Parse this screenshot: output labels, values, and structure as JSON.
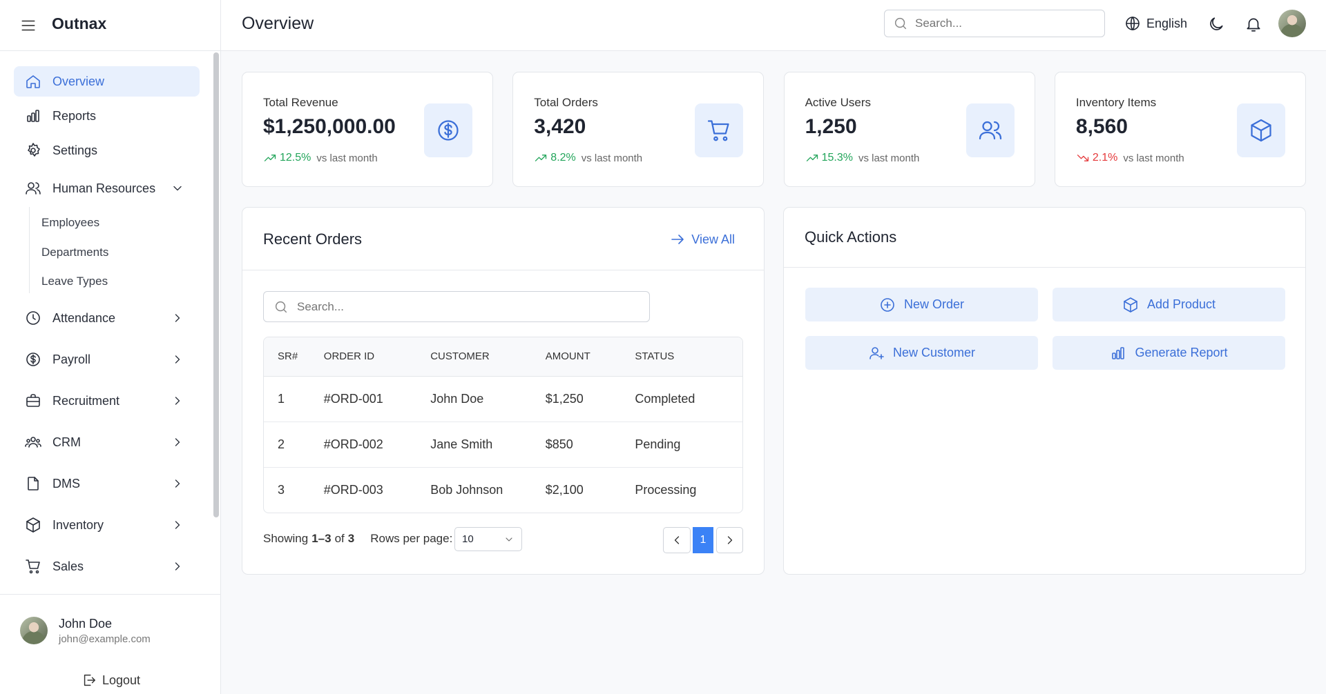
{
  "brand": "Outnax",
  "header": {
    "title": "Overview",
    "search_placeholder": "Search...",
    "language": "English"
  },
  "sidebar": {
    "items": [
      {
        "label": "Overview"
      },
      {
        "label": "Reports"
      },
      {
        "label": "Settings"
      },
      {
        "label": "Human Resources",
        "children": [
          "Employees",
          "Departments",
          "Leave Types"
        ]
      },
      {
        "label": "Attendance"
      },
      {
        "label": "Payroll"
      },
      {
        "label": "Recruitment"
      },
      {
        "label": "CRM"
      },
      {
        "label": "DMS"
      },
      {
        "label": "Inventory"
      },
      {
        "label": "Sales"
      }
    ],
    "user": {
      "name": "John Doe",
      "email": "john@example.com"
    },
    "logout": "Logout"
  },
  "stats": [
    {
      "label": "Total Revenue",
      "value": "$1,250,000.00",
      "change": "12.5%",
      "note": "vs last month",
      "trend": "up"
    },
    {
      "label": "Total Orders",
      "value": "3,420",
      "change": "8.2%",
      "note": "vs last month",
      "trend": "up"
    },
    {
      "label": "Active Users",
      "value": "1,250",
      "change": "15.3%",
      "note": "vs last month",
      "trend": "up"
    },
    {
      "label": "Inventory Items",
      "value": "8,560",
      "change": "2.1%",
      "note": "vs last month",
      "trend": "down"
    }
  ],
  "recent_orders": {
    "title": "Recent Orders",
    "view_all": "View All",
    "search_placeholder": "Search...",
    "columns": [
      "SR#",
      "ORDER ID",
      "CUSTOMER",
      "AMOUNT",
      "STATUS"
    ],
    "rows": [
      [
        "1",
        "#ORD-001",
        "John Doe",
        "$1,250",
        "Completed"
      ],
      [
        "2",
        "#ORD-002",
        "Jane Smith",
        "$850",
        "Pending"
      ],
      [
        "3",
        "#ORD-003",
        "Bob Johnson",
        "$2,100",
        "Processing"
      ]
    ],
    "pagination": {
      "showing": "Showing",
      "range": "1–3",
      "of": "of",
      "total": "3",
      "rows_per_page": "Rows per page:",
      "page_size": "10",
      "page": "1"
    }
  },
  "quick_actions": {
    "title": "Quick Actions",
    "actions": [
      "New Order",
      "Add Product",
      "New Customer",
      "Generate Report"
    ]
  }
}
